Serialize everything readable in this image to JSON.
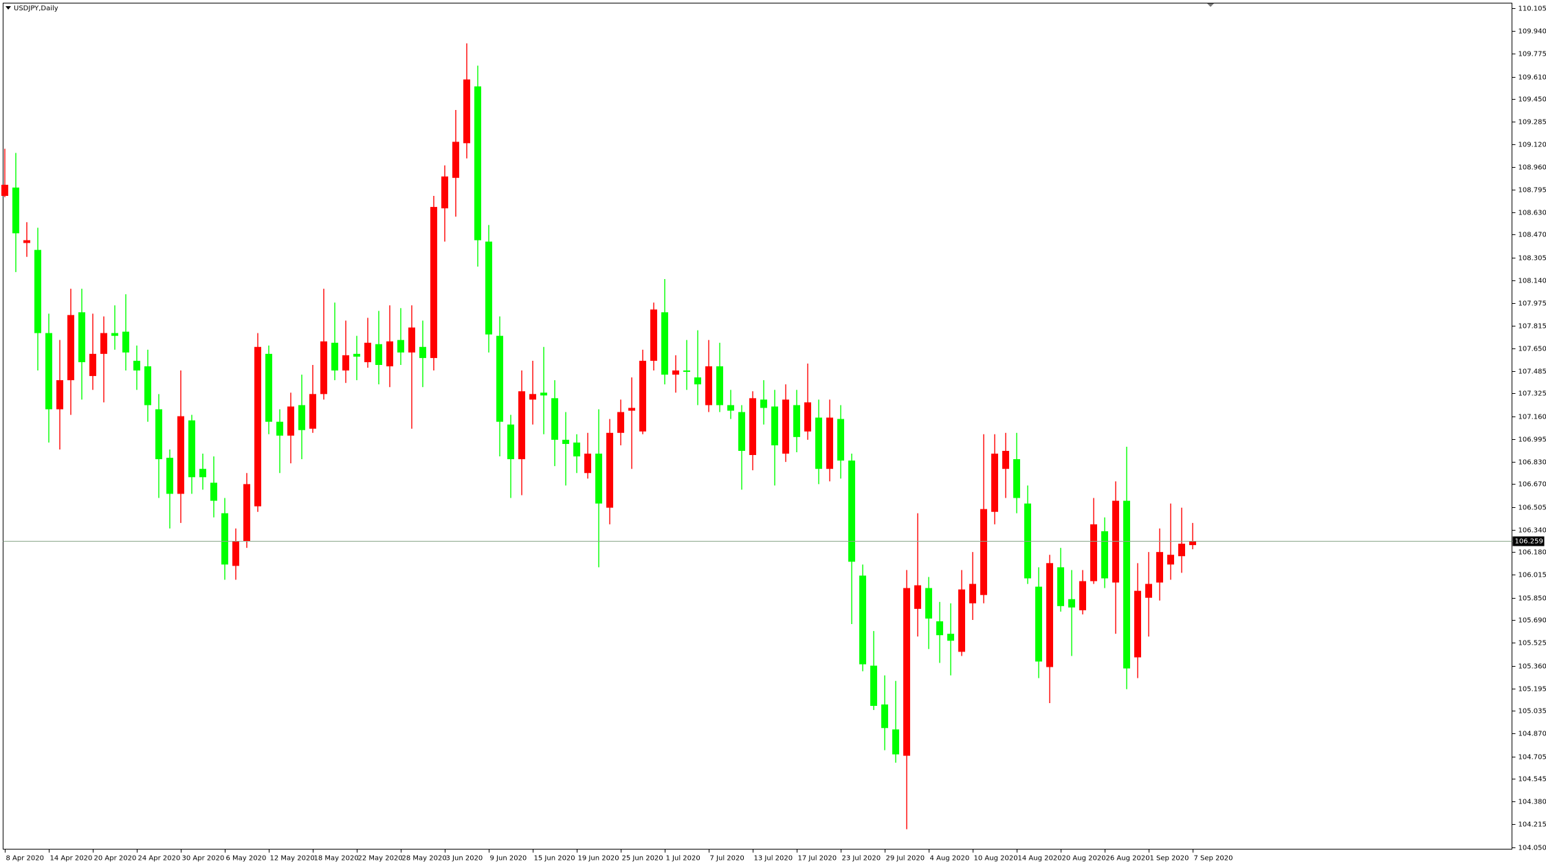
{
  "chart_data": {
    "type": "candlestick",
    "title": "USDJPY,Daily",
    "categories": [
      "8 Apr 2020",
      null,
      null,
      null,
      "14 Apr 2020",
      null,
      null,
      null,
      "20 Apr 2020",
      null,
      null,
      null,
      "24 Apr 2020",
      null,
      null,
      null,
      "30 Apr 2020",
      null,
      null,
      null,
      "6 May 2020",
      null,
      null,
      null,
      "12 May 2020",
      null,
      null,
      null,
      "18 May 2020",
      null,
      null,
      null,
      "22 May 2020",
      null,
      null,
      null,
      "28 May 2020",
      null,
      null,
      null,
      "3 Jun 2020",
      null,
      null,
      null,
      "9 Jun 2020",
      null,
      null,
      null,
      "15 Jun 2020",
      null,
      null,
      null,
      "19 Jun 2020",
      null,
      null,
      null,
      "25 Jun 2020",
      null,
      null,
      null,
      "1 Jul 2020",
      null,
      null,
      null,
      "7 Jul 2020",
      null,
      null,
      null,
      "13 Jul 2020",
      null,
      null,
      null,
      "17 Jul 2020",
      null,
      null,
      null,
      "23 Jul 2020",
      null,
      null,
      null,
      "29 Jul 2020",
      null,
      null,
      null,
      "4 Aug 2020",
      null,
      null,
      null,
      "10 Aug 2020",
      null,
      null,
      null,
      "14 Aug 2020",
      null,
      null,
      null,
      "20 Aug 2020",
      null,
      null,
      null,
      "26 Aug 2020",
      null,
      null,
      null,
      "1 Sep 2020",
      null,
      null,
      null,
      "7 Sep 2020"
    ],
    "open": [
      108.75,
      108.81,
      108.41,
      108.36,
      107.76,
      107.21,
      107.42,
      107.91,
      107.45,
      107.61,
      107.76,
      107.77,
      107.56,
      107.52,
      107.21,
      106.86,
      106.6,
      107.13,
      106.78,
      106.68,
      106.46,
      106.08,
      106.26,
      106.51,
      107.61,
      107.12,
      107.02,
      107.24,
      107.07,
      107.32,
      107.69,
      107.49,
      107.61,
      107.55,
      107.68,
      107.52,
      107.71,
      107.62,
      107.66,
      107.58,
      108.66,
      108.88,
      109.13,
      109.54,
      108.42,
      107.74,
      107.1,
      106.85,
      107.28,
      107.33,
      107.29,
      106.99,
      106.97,
      106.75,
      106.89,
      106.5,
      107.04,
      107.2,
      107.05,
      107.56,
      107.91,
      107.46,
      107.49,
      107.44,
      107.24,
      107.52,
      107.24,
      107.19,
      106.88,
      107.28,
      107.23,
      106.89,
      107.24,
      107.05,
      107.15,
      106.78,
      107.14,
      106.84,
      106.01,
      105.36,
      105.08,
      104.9,
      104.71,
      105.77,
      105.92,
      105.68,
      105.59,
      105.46,
      105.81,
      105.87,
      106.47,
      106.78,
      106.85,
      106.53,
      105.93,
      105.35,
      106.07,
      105.84,
      105.76,
      105.97,
      106.33,
      105.96,
      106.55,
      105.42,
      105.85,
      105.96,
      106.09,
      106.15,
      106.23
    ],
    "high": [
      109.09,
      109.06,
      108.56,
      108.52,
      107.9,
      107.71,
      108.08,
      108.08,
      107.9,
      107.88,
      107.96,
      108.04,
      107.67,
      107.64,
      107.32,
      106.92,
      107.49,
      107.17,
      106.89,
      106.87,
      106.57,
      106.35,
      106.75,
      107.76,
      107.67,
      107.21,
      107.33,
      107.46,
      107.53,
      108.08,
      107.98,
      107.85,
      107.74,
      107.87,
      107.92,
      107.96,
      107.94,
      107.96,
      107.85,
      108.75,
      108.97,
      109.37,
      109.85,
      109.69,
      108.54,
      107.88,
      107.17,
      107.49,
      107.56,
      107.66,
      107.42,
      107.19,
      107.03,
      107.04,
      107.21,
      107.14,
      107.28,
      107.44,
      107.64,
      107.98,
      108.15,
      107.6,
      107.71,
      107.78,
      107.71,
      107.69,
      107.35,
      107.24,
      107.34,
      107.42,
      107.35,
      107.39,
      107.35,
      107.54,
      107.28,
      107.28,
      107.24,
      106.89,
      106.09,
      105.61,
      105.29,
      105.25,
      106.05,
      106.46,
      106.0,
      105.82,
      105.81,
      106.05,
      106.18,
      107.03,
      107.03,
      107.04,
      107.04,
      106.66,
      106.07,
      106.16,
      106.21,
      106.05,
      106.05,
      106.57,
      106.43,
      106.69,
      106.94,
      106.1,
      106.18,
      106.35,
      106.53,
      106.5,
      106.39
    ],
    "low": [
      108.74,
      108.2,
      108.31,
      107.49,
      106.97,
      106.92,
      107.17,
      107.28,
      107.35,
      107.26,
      107.64,
      107.49,
      107.35,
      107.12,
      106.57,
      106.35,
      106.39,
      106.6,
      106.63,
      106.43,
      105.98,
      105.98,
      106.21,
      106.47,
      107.03,
      106.75,
      106.82,
      106.85,
      107.04,
      107.28,
      107.42,
      107.4,
      107.42,
      107.51,
      107.39,
      107.37,
      107.53,
      107.07,
      107.37,
      107.49,
      108.42,
      108.6,
      109.02,
      108.24,
      107.62,
      106.87,
      106.57,
      106.59,
      107.1,
      107.03,
      106.8,
      106.66,
      106.75,
      106.71,
      106.07,
      106.38,
      106.95,
      106.78,
      107.03,
      107.49,
      107.39,
      107.33,
      107.35,
      107.24,
      107.19,
      107.19,
      107.14,
      106.63,
      106.77,
      107.1,
      106.66,
      106.83,
      106.9,
      106.99,
      106.67,
      106.69,
      106.71,
      105.66,
      105.32,
      105.04,
      104.75,
      104.66,
      104.18,
      105.57,
      105.48,
      105.38,
      105.29,
      105.43,
      105.69,
      105.81,
      106.38,
      106.57,
      106.46,
      105.95,
      105.27,
      105.09,
      105.75,
      105.43,
      105.73,
      105.95,
      105.92,
      105.59,
      105.19,
      105.27,
      105.57,
      105.83,
      105.98,
      106.03,
      106.2
    ],
    "close": [
      108.83,
      108.48,
      108.43,
      107.76,
      107.21,
      107.42,
      107.89,
      107.55,
      107.61,
      107.76,
      107.74,
      107.62,
      107.49,
      107.24,
      106.85,
      106.6,
      107.16,
      106.72,
      106.72,
      106.55,
      106.09,
      106.26,
      106.67,
      107.66,
      107.12,
      107.02,
      107.23,
      107.06,
      107.32,
      107.7,
      107.49,
      107.6,
      107.59,
      107.69,
      107.53,
      107.7,
      107.62,
      107.8,
      107.58,
      108.67,
      108.89,
      109.14,
      109.59,
      108.43,
      107.75,
      107.12,
      106.85,
      107.34,
      107.32,
      107.31,
      106.99,
      106.96,
      106.87,
      106.89,
      106.53,
      107.04,
      107.19,
      107.22,
      107.56,
      107.93,
      107.46,
      107.49,
      107.48,
      107.39,
      107.52,
      107.24,
      107.2,
      106.91,
      107.29,
      107.22,
      106.95,
      107.28,
      107.01,
      107.26,
      106.78,
      107.15,
      106.84,
      106.11,
      105.37,
      105.07,
      104.91,
      104.72,
      105.92,
      105.94,
      105.7,
      105.58,
      105.54,
      105.91,
      105.95,
      106.49,
      106.89,
      106.91,
      106.57,
      105.99,
      105.39,
      106.1,
      105.79,
      105.78,
      105.97,
      106.38,
      105.99,
      106.55,
      105.34,
      105.9,
      105.95,
      106.18,
      106.16,
      106.24,
      106.259
    ],
    "up_color": "#ff0000",
    "down_color": "#00ff00",
    "current_price": 106.259,
    "current_price_color": "#8aa68a",
    "ylim": [
      104.036,
      110.141
    ],
    "yticks": [
      110.105,
      {
        "value": 109.94,
        "label": "109.940"
      },
      109.775,
      {
        "value": 109.61,
        "label": "109.610"
      },
      {
        "value": 109.45,
        "label": "109.450"
      },
      109.285,
      {
        "value": 109.12,
        "label": "109.120"
      },
      {
        "value": 108.96,
        "label": "108.960"
      },
      108.795,
      {
        "value": 108.63,
        "label": "108.630"
      },
      {
        "value": 108.47,
        "label": "108.470"
      },
      108.305,
      {
        "value": 108.14,
        "label": "108.140"
      },
      107.975,
      107.815,
      {
        "value": 107.65,
        "label": "107.650"
      },
      107.485,
      107.325,
      {
        "value": 107.16,
        "label": "107.160"
      },
      106.995,
      {
        "value": 106.83,
        "label": "106.830"
      },
      {
        "value": 106.67,
        "label": "106.670"
      },
      106.505,
      {
        "value": 106.34,
        "label": "106.340"
      },
      {
        "value": 106.18,
        "label": "106.180"
      },
      106.015,
      {
        "value": 105.85,
        "label": "105.850"
      },
      {
        "value": 105.69,
        "label": "105.690"
      },
      105.525,
      {
        "value": 105.36,
        "label": "105.360"
      },
      105.195,
      105.035,
      {
        "value": 104.87,
        "label": "104.870"
      },
      104.705,
      104.545,
      {
        "value": 104.38,
        "label": "104.380"
      },
      104.215,
      {
        "value": 104.05,
        "label": "104.050"
      }
    ],
    "grid": false
  }
}
